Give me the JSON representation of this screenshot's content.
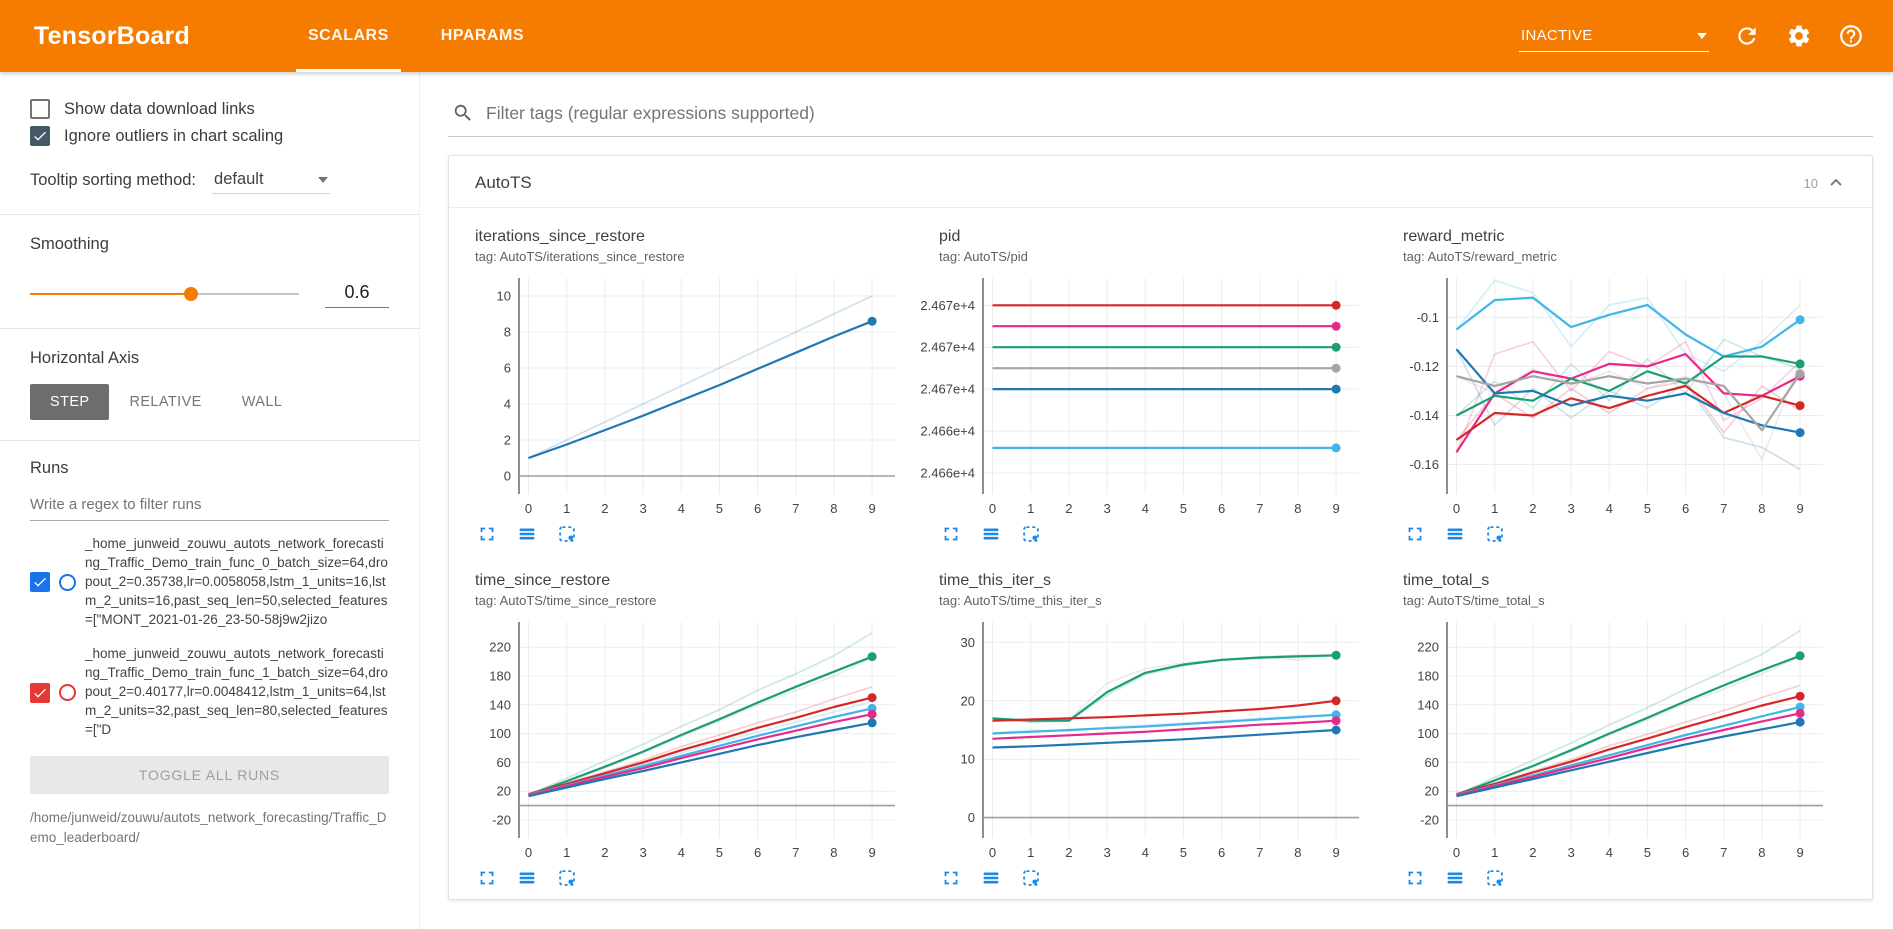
{
  "colors": {
    "header_orange": "#f57c00",
    "tool_icon_blue": "#1e88e5",
    "run1_color": "#1a73e8",
    "run2_color": "#e53935"
  },
  "header": {
    "title": "TensorBoard",
    "tabs": [
      {
        "label": "SCALARS",
        "active": true
      },
      {
        "label": "HPARAMS",
        "active": false
      }
    ],
    "status_select": "INACTIVE"
  },
  "sidebar": {
    "checkboxes": [
      {
        "label": "Show data download links",
        "checked": false
      },
      {
        "label": "Ignore outliers in chart scaling",
        "checked": true
      }
    ],
    "tooltip_sort": {
      "label": "Tooltip sorting method:",
      "value": "default"
    },
    "smoothing": {
      "label": "Smoothing",
      "value": "0.6"
    },
    "horizontal_axis": {
      "label": "Horizontal Axis",
      "options": [
        "STEP",
        "RELATIVE",
        "WALL"
      ],
      "selected": "STEP"
    },
    "runs": {
      "label": "Runs",
      "filter_placeholder": "Write a regex to filter runs",
      "items": [
        {
          "color": "#1a73e8",
          "name": "_home_junweid_zouwu_autots_network_forecasting_Traffic_Demo_train_func_0_batch_size=64,dropout_2=0.35738,lr=0.0058058,lstm_1_units=16,lstm_2_units=16,past_seq_len=50,selected_features=[\"MONT_2021-01-26_23-50-58j9w2jizo"
        },
        {
          "color": "#e53935",
          "name": "_home_junweid_zouwu_autots_network_forecasting_Traffic_Demo_train_func_1_batch_size=64,dropout_2=0.40177,lr=0.0048412,lstm_1_units=64,lstm_2_units=32,past_seq_len=80,selected_features=[\"D"
        }
      ],
      "toggle_all": "TOGGLE ALL RUNS",
      "footer_path": "/home/junweid/zouwu/autots_network_forecasting/Traffic_Demo_leaderboard/"
    }
  },
  "main": {
    "filter_placeholder": "Filter tags (regular expressions supported)",
    "card": {
      "title": "AutoTS",
      "count": "10"
    }
  },
  "chart_tools": [
    "fullscreen-icon",
    "data-download-icon",
    "fit-domain-icon"
  ],
  "chart_data": [
    {
      "type": "line",
      "title": "iterations_since_restore",
      "tag": "tag: AutoTS/iterations_since_restore",
      "xlim": [
        -0.25,
        9.6
      ],
      "ylim": [
        -1.0,
        11.0
      ],
      "zeroline": true,
      "xticks": [
        0,
        1,
        2,
        3,
        4,
        5,
        6,
        7,
        8,
        9
      ],
      "yticks": [
        {
          "v": 0,
          "label": "0"
        },
        {
          "v": 2,
          "label": "2"
        },
        {
          "v": 4,
          "label": "4"
        },
        {
          "v": 6,
          "label": "6"
        },
        {
          "v": 8,
          "label": "8"
        },
        {
          "v": 10,
          "label": "10"
        }
      ],
      "series": [
        {
          "color": "#1f77b4",
          "faded": true,
          "dot": false,
          "values": [
            1,
            2,
            3,
            4,
            5,
            6,
            7,
            8,
            9,
            10
          ]
        },
        {
          "color": "#1f77b4",
          "faded": false,
          "dot": true,
          "values": [
            1,
            1.75,
            2.55,
            3.35,
            4.2,
            5.05,
            5.95,
            6.85,
            7.75,
            8.6
          ]
        }
      ]
    },
    {
      "type": "line",
      "title": "pid",
      "tag": "tag: AutoTS/pid",
      "xlim": [
        -0.25,
        9.6
      ],
      "ylim": [
        24661.0,
        24671.3
      ],
      "zeroline": false,
      "xticks": [
        0,
        1,
        2,
        3,
        4,
        5,
        6,
        7,
        8,
        9
      ],
      "yticks": [
        {
          "v": 24670,
          "label": "2.467e+4"
        },
        {
          "v": 24668,
          "label": "2.467e+4"
        },
        {
          "v": 24666,
          "label": "2.467e+4"
        },
        {
          "v": 24664,
          "label": "2.466e+4"
        },
        {
          "v": 24662,
          "label": "2.466e+4"
        }
      ],
      "series": [
        {
          "color": "#d62728",
          "faded": false,
          "dot": true,
          "values": [
            24670,
            24670
          ]
        },
        {
          "color": "#e7298a",
          "faded": false,
          "dot": true,
          "values": [
            24669,
            24669
          ]
        },
        {
          "color": "#1b9e77",
          "faded": false,
          "dot": true,
          "values": [
            24668,
            24668
          ]
        },
        {
          "color": "#a5a5a5",
          "faded": false,
          "dot": true,
          "values": [
            24667,
            24667
          ]
        },
        {
          "color": "#1f77b4",
          "faded": false,
          "dot": true,
          "values": [
            24666,
            24666
          ]
        },
        {
          "color": "#41b6e6",
          "faded": false,
          "dot": true,
          "values": [
            24663.2,
            24663.2
          ]
        }
      ]
    },
    {
      "type": "line",
      "title": "reward_metric",
      "tag": "tag: AutoTS/reward_metric",
      "xlim": [
        -0.25,
        9.6
      ],
      "ylim": [
        -0.172,
        -0.084
      ],
      "zeroline": false,
      "xticks": [
        0,
        1,
        2,
        3,
        4,
        5,
        6,
        7,
        8,
        9
      ],
      "yticks": [
        {
          "v": -0.1,
          "label": "-0.1"
        },
        {
          "v": -0.12,
          "label": "-0.12"
        },
        {
          "v": -0.14,
          "label": "-0.14"
        },
        {
          "v": -0.16,
          "label": "-0.16"
        }
      ],
      "series": [
        {
          "color": "#41b6e6",
          "faded": true,
          "dot": false,
          "values": [
            -0.105,
            -0.085,
            -0.09,
            -0.112,
            -0.095,
            -0.092,
            -0.115,
            -0.122,
            -0.11,
            -0.095
          ]
        },
        {
          "color": "#e7298a",
          "faded": true,
          "dot": false,
          "values": [
            -0.155,
            -0.115,
            -0.11,
            -0.13,
            -0.114,
            -0.12,
            -0.11,
            -0.142,
            -0.133,
            -0.118
          ]
        },
        {
          "color": "#1b9e77",
          "faded": true,
          "dot": false,
          "values": [
            -0.14,
            -0.126,
            -0.137,
            -0.119,
            -0.134,
            -0.117,
            -0.131,
            -0.109,
            -0.116,
            -0.121
          ]
        },
        {
          "color": "#d62728",
          "faded": true,
          "dot": false,
          "values": [
            -0.15,
            -0.131,
            -0.141,
            -0.129,
            -0.139,
            -0.129,
            -0.126,
            -0.147,
            -0.128,
            -0.138
          ]
        },
        {
          "color": "#1f77b4",
          "faded": true,
          "dot": false,
          "values": [
            -0.113,
            -0.144,
            -0.129,
            -0.141,
            -0.13,
            -0.137,
            -0.127,
            -0.149,
            -0.153,
            -0.162
          ]
        },
        {
          "color": "#a5a5a5",
          "faded": true,
          "dot": false,
          "values": [
            -0.124,
            -0.131,
            -0.121,
            -0.128,
            -0.122,
            -0.129,
            -0.124,
            -0.131,
            -0.158,
            -0.118
          ]
        },
        {
          "color": "#41b6e6",
          "faded": false,
          "dot": true,
          "values": [
            -0.105,
            -0.093,
            -0.092,
            -0.104,
            -0.099,
            -0.095,
            -0.107,
            -0.116,
            -0.112,
            -0.101
          ]
        },
        {
          "color": "#e7298a",
          "faded": false,
          "dot": true,
          "values": [
            -0.155,
            -0.131,
            -0.122,
            -0.125,
            -0.119,
            -0.12,
            -0.115,
            -0.131,
            -0.132,
            -0.124
          ]
        },
        {
          "color": "#1b9e77",
          "faded": false,
          "dot": true,
          "values": [
            -0.14,
            -0.132,
            -0.134,
            -0.125,
            -0.13,
            -0.122,
            -0.127,
            -0.116,
            -0.116,
            -0.119
          ]
        },
        {
          "color": "#d62728",
          "faded": false,
          "dot": true,
          "values": [
            -0.15,
            -0.139,
            -0.14,
            -0.133,
            -0.137,
            -0.132,
            -0.128,
            -0.139,
            -0.132,
            -0.136
          ]
        },
        {
          "color": "#1f77b4",
          "faded": false,
          "dot": true,
          "values": [
            -0.113,
            -0.131,
            -0.13,
            -0.136,
            -0.132,
            -0.134,
            -0.131,
            -0.139,
            -0.144,
            -0.147
          ]
        },
        {
          "color": "#a5a5a5",
          "faded": false,
          "dot": true,
          "values": [
            -0.124,
            -0.128,
            -0.124,
            -0.127,
            -0.124,
            -0.127,
            -0.125,
            -0.128,
            -0.146,
            -0.123
          ]
        }
      ]
    },
    {
      "type": "line",
      "title": "time_since_restore",
      "tag": "tag: AutoTS/time_since_restore",
      "xlim": [
        -0.25,
        9.6
      ],
      "ylim": [
        -45,
        255
      ],
      "zeroline": true,
      "xticks": [
        0,
        1,
        2,
        3,
        4,
        5,
        6,
        7,
        8,
        9
      ],
      "yticks": [
        {
          "v": 220,
          "label": "220"
        },
        {
          "v": 180,
          "label": "180"
        },
        {
          "v": 140,
          "label": "140"
        },
        {
          "v": 100,
          "label": "100"
        },
        {
          "v": 60,
          "label": "60"
        },
        {
          "v": 20,
          "label": "20"
        },
        {
          "v": -20,
          "label": "-20"
        }
      ],
      "series": [
        {
          "color": "#1b9e77",
          "faded": true,
          "dot": false,
          "values": [
            15,
            38,
            62,
            85,
            110,
            133,
            160,
            183,
            208,
            240
          ]
        },
        {
          "color": "#a5a5a5",
          "faded": true,
          "dot": false,
          "values": [
            14,
            32,
            52,
            73,
            96,
            117,
            140,
            160,
            180,
            205
          ]
        },
        {
          "color": "#d62728",
          "faded": true,
          "dot": false,
          "values": [
            16,
            31,
            47,
            63,
            82,
            98,
            115,
            130,
            148,
            165
          ]
        },
        {
          "color": "#41b6e6",
          "faded": true,
          "dot": false,
          "values": [
            15,
            29,
            44,
            58,
            73,
            88,
            102,
            116,
            130,
            145
          ]
        },
        {
          "color": "#1b9e77",
          "faded": false,
          "dot": true,
          "values": [
            15,
            34,
            54,
            75,
            98,
            120,
            143,
            165,
            186,
            207
          ]
        },
        {
          "color": "#d62728",
          "faded": false,
          "dot": true,
          "values": [
            16,
            30,
            45,
            60,
            77,
            92,
            108,
            122,
            137,
            150
          ]
        },
        {
          "color": "#41b6e6",
          "faded": false,
          "dot": true,
          "values": [
            15,
            28,
            42,
            55,
            69,
            83,
            97,
            110,
            123,
            135
          ]
        },
        {
          "color": "#e7298a",
          "faded": false,
          "dot": true,
          "values": [
            14,
            27,
            40,
            52,
            66,
            79,
            92,
            104,
            116,
            127
          ]
        },
        {
          "color": "#1f77b4",
          "faded": false,
          "dot": true,
          "values": [
            13,
            25,
            37,
            48,
            60,
            72,
            84,
            95,
            105,
            115
          ]
        }
      ]
    },
    {
      "type": "line",
      "title": "time_this_iter_s",
      "tag": "tag: AutoTS/time_this_iter_s",
      "xlim": [
        -0.25,
        9.6
      ],
      "ylim": [
        -3.5,
        33.5
      ],
      "zeroline": true,
      "xticks": [
        0,
        1,
        2,
        3,
        4,
        5,
        6,
        7,
        8,
        9
      ],
      "yticks": [
        {
          "v": 30,
          "label": "30"
        },
        {
          "v": 20,
          "label": "20"
        },
        {
          "v": 10,
          "label": "10"
        },
        {
          "v": 0,
          "label": "0"
        }
      ],
      "series": [
        {
          "color": "#a5a5a5",
          "faded": true,
          "dot": false,
          "values": [
            16.5,
            16.5,
            16.8,
            23,
            25.5,
            26.5,
            27,
            27.5,
            27,
            28
          ]
        },
        {
          "color": "#1b9e77",
          "faded": true,
          "dot": false,
          "values": [
            17,
            16.3,
            16.5,
            21,
            24.5,
            26,
            27,
            27.5,
            27.8,
            27.6
          ]
        },
        {
          "color": "#41b6e6",
          "faded": true,
          "dot": false,
          "values": [
            14.5,
            15,
            14.8,
            15.5,
            15.8,
            16.2,
            16.6,
            17,
            17.4,
            17.6
          ]
        },
        {
          "color": "#1b9e77",
          "faded": false,
          "dot": true,
          "values": [
            17,
            16.6,
            16.6,
            21.5,
            24.8,
            26.2,
            27,
            27.4,
            27.6,
            27.8
          ]
        },
        {
          "color": "#d62728",
          "faded": false,
          "dot": true,
          "values": [
            16.6,
            16.8,
            17,
            17.2,
            17.5,
            17.8,
            18.2,
            18.6,
            19.2,
            20
          ]
        },
        {
          "color": "#41b6e6",
          "faded": false,
          "dot": true,
          "values": [
            14.4,
            14.7,
            15,
            15.3,
            15.6,
            16,
            16.4,
            16.8,
            17.2,
            17.6
          ]
        },
        {
          "color": "#e7298a",
          "faded": false,
          "dot": true,
          "values": [
            13.5,
            13.8,
            14.1,
            14.4,
            14.7,
            15.1,
            15.5,
            15.9,
            16.2,
            16.6
          ]
        },
        {
          "color": "#1f77b4",
          "faded": false,
          "dot": true,
          "values": [
            12,
            12.2,
            12.5,
            12.8,
            13.1,
            13.4,
            13.8,
            14.2,
            14.6,
            15
          ]
        }
      ]
    },
    {
      "type": "line",
      "title": "time_total_s",
      "tag": "tag: AutoTS/time_total_s",
      "xlim": [
        -0.25,
        9.6
      ],
      "ylim": [
        -45,
        255
      ],
      "zeroline": true,
      "xticks": [
        0,
        1,
        2,
        3,
        4,
        5,
        6,
        7,
        8,
        9
      ],
      "yticks": [
        {
          "v": 220,
          "label": "220"
        },
        {
          "v": 180,
          "label": "180"
        },
        {
          "v": 140,
          "label": "140"
        },
        {
          "v": 100,
          "label": "100"
        },
        {
          "v": 60,
          "label": "60"
        },
        {
          "v": 20,
          "label": "20"
        },
        {
          "v": -20,
          "label": "-20"
        }
      ],
      "series": [
        {
          "color": "#1b9e77",
          "faded": true,
          "dot": false,
          "values": [
            15,
            39,
            63,
            87,
            112,
            136,
            162,
            186,
            210,
            243
          ]
        },
        {
          "color": "#a5a5a5",
          "faded": true,
          "dot": false,
          "values": [
            14,
            33,
            54,
            75,
            98,
            119,
            142,
            162,
            183,
            207
          ]
        },
        {
          "color": "#d62728",
          "faded": true,
          "dot": false,
          "values": [
            16,
            31,
            48,
            64,
            83,
            99,
            116,
            132,
            150,
            167
          ]
        },
        {
          "color": "#1b9e77",
          "faded": false,
          "dot": true,
          "values": [
            15,
            35,
            55,
            77,
            100,
            122,
            145,
            167,
            188,
            208
          ]
        },
        {
          "color": "#d62728",
          "faded": false,
          "dot": true,
          "values": [
            16,
            30,
            46,
            61,
            78,
            93,
            109,
            124,
            139,
            152
          ]
        },
        {
          "color": "#41b6e6",
          "faded": false,
          "dot": true,
          "values": [
            15,
            28,
            42,
            56,
            70,
            84,
            98,
            111,
            124,
            137
          ]
        },
        {
          "color": "#e7298a",
          "faded": false,
          "dot": true,
          "values": [
            14,
            27,
            40,
            53,
            66,
            80,
            93,
            105,
            117,
            128
          ]
        },
        {
          "color": "#1f77b4",
          "faded": false,
          "dot": true,
          "values": [
            13,
            25,
            37,
            49,
            61,
            73,
            85,
            96,
            106,
            116
          ]
        }
      ]
    }
  ]
}
